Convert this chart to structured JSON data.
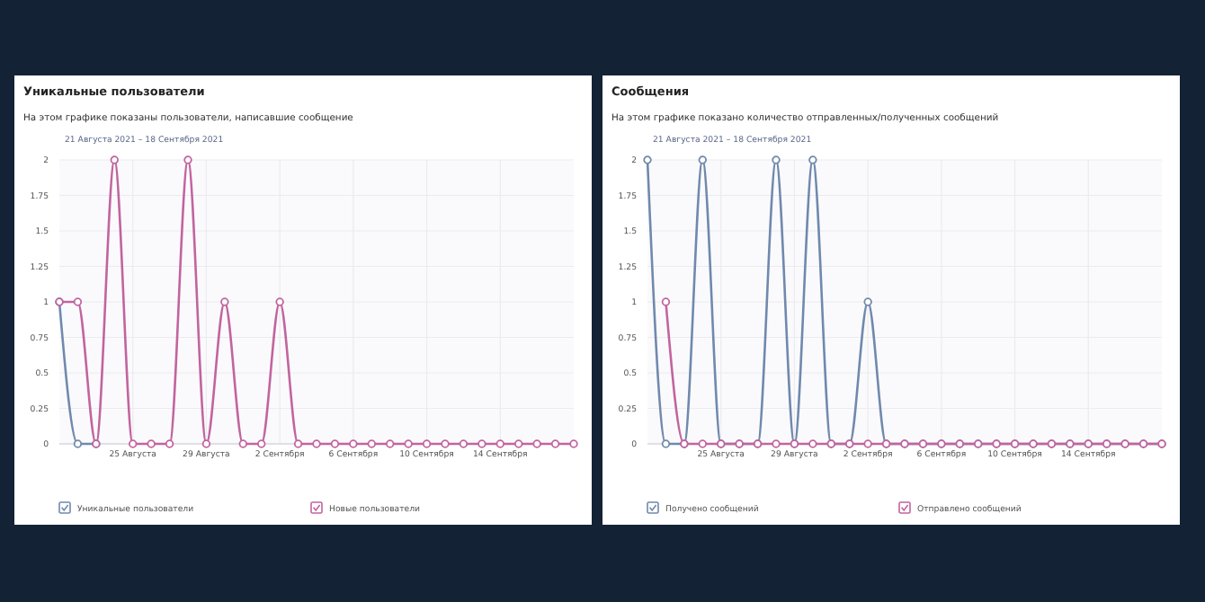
{
  "chart_data": [
    {
      "type": "line",
      "title": "Уникальные пользователи",
      "subtitle": "На этом графике показаны пользователи, написавшие сообщение",
      "annotations": [
        "21 Августа 2021 – 18 Сентября 2021"
      ],
      "x": [
        "2021-08-21",
        "2021-08-22",
        "2021-08-23",
        "2021-08-24",
        "2021-08-25",
        "2021-08-26",
        "2021-08-27",
        "2021-08-28",
        "2021-08-29",
        "2021-08-30",
        "2021-08-31",
        "2021-09-01",
        "2021-09-02",
        "2021-09-03",
        "2021-09-04",
        "2021-09-05",
        "2021-09-06",
        "2021-09-07",
        "2021-09-08",
        "2021-09-09",
        "2021-09-10",
        "2021-09-11",
        "2021-09-12",
        "2021-09-13",
        "2021-09-14",
        "2021-09-15",
        "2021-09-16",
        "2021-09-17",
        "2021-09-18"
      ],
      "xlim": [
        "2021-08-21",
        "2021-09-18"
      ],
      "xticks": [
        {
          "value": "2021-08-25",
          "label": "25 Августа"
        },
        {
          "value": "2021-08-29",
          "label": "29 Августа"
        },
        {
          "value": "2021-09-02",
          "label": "2 Сентября"
        },
        {
          "value": "2021-09-06",
          "label": "6 Сентября"
        },
        {
          "value": "2021-09-10",
          "label": "10 Сентября"
        },
        {
          "value": "2021-09-14",
          "label": "14 Сентября"
        }
      ],
      "ylim": [
        0,
        2
      ],
      "yticks": [
        0,
        0.25,
        0.5,
        0.75,
        1,
        1.25,
        1.5,
        1.75,
        2
      ],
      "grid": true,
      "legend": "bottom",
      "marker": "circle",
      "series": [
        {
          "name": "Уникальные пользователи",
          "color": "#7089ad",
          "values": [
            1,
            0,
            0,
            null,
            null,
            null,
            null,
            null,
            null,
            null,
            null,
            null,
            null,
            null,
            null,
            null,
            null,
            null,
            null,
            null,
            null,
            null,
            null,
            null,
            null,
            null,
            null,
            null,
            null
          ]
        },
        {
          "name": "Новые пользователи",
          "color": "#c2649f",
          "values": [
            1,
            1,
            0,
            2,
            0,
            0,
            0,
            2,
            0,
            1,
            0,
            0,
            1,
            0,
            0,
            0,
            0,
            0,
            0,
            0,
            0,
            0,
            0,
            0,
            0,
            0,
            0,
            0,
            0
          ]
        }
      ]
    },
    {
      "type": "line",
      "title": "Сообщения",
      "subtitle": "На этом графике показано количество отправленных/полученных сообщений",
      "annotations": [
        "21 Августа 2021 – 18 Сентября 2021"
      ],
      "x": [
        "2021-08-21",
        "2021-08-22",
        "2021-08-23",
        "2021-08-24",
        "2021-08-25",
        "2021-08-26",
        "2021-08-27",
        "2021-08-28",
        "2021-08-29",
        "2021-08-30",
        "2021-08-31",
        "2021-09-01",
        "2021-09-02",
        "2021-09-03",
        "2021-09-04",
        "2021-09-05",
        "2021-09-06",
        "2021-09-07",
        "2021-09-08",
        "2021-09-09",
        "2021-09-10",
        "2021-09-11",
        "2021-09-12",
        "2021-09-13",
        "2021-09-14",
        "2021-09-15",
        "2021-09-16",
        "2021-09-17",
        "2021-09-18"
      ],
      "xlim": [
        "2021-08-21",
        "2021-09-18"
      ],
      "xticks": [
        {
          "value": "2021-08-25",
          "label": "25 Августа"
        },
        {
          "value": "2021-08-29",
          "label": "29 Августа"
        },
        {
          "value": "2021-09-02",
          "label": "2 Сентября"
        },
        {
          "value": "2021-09-06",
          "label": "6 Сентября"
        },
        {
          "value": "2021-09-10",
          "label": "10 Сентября"
        },
        {
          "value": "2021-09-14",
          "label": "14 Сентября"
        }
      ],
      "ylim": [
        0,
        2
      ],
      "yticks": [
        0,
        0.25,
        0.5,
        0.75,
        1,
        1.25,
        1.5,
        1.75,
        2
      ],
      "grid": true,
      "legend": "bottom",
      "marker": "circle",
      "series": [
        {
          "name": "Получено сообщений",
          "color": "#7089ad",
          "values": [
            2,
            0,
            0,
            2,
            0,
            0,
            0,
            2,
            0,
            2,
            0,
            0,
            1,
            0,
            0,
            0,
            0,
            0,
            0,
            0,
            0,
            0,
            0,
            0,
            0,
            0,
            0,
            0,
            0
          ]
        },
        {
          "name": "Отправлено сообщений",
          "color": "#c2649f",
          "values": [
            null,
            1,
            0,
            0,
            0,
            0,
            0,
            0,
            0,
            0,
            0,
            0,
            0,
            0,
            0,
            0,
            0,
            0,
            0,
            0,
            0,
            0,
            0,
            0,
            0,
            0,
            0,
            0,
            0
          ]
        }
      ]
    }
  ]
}
